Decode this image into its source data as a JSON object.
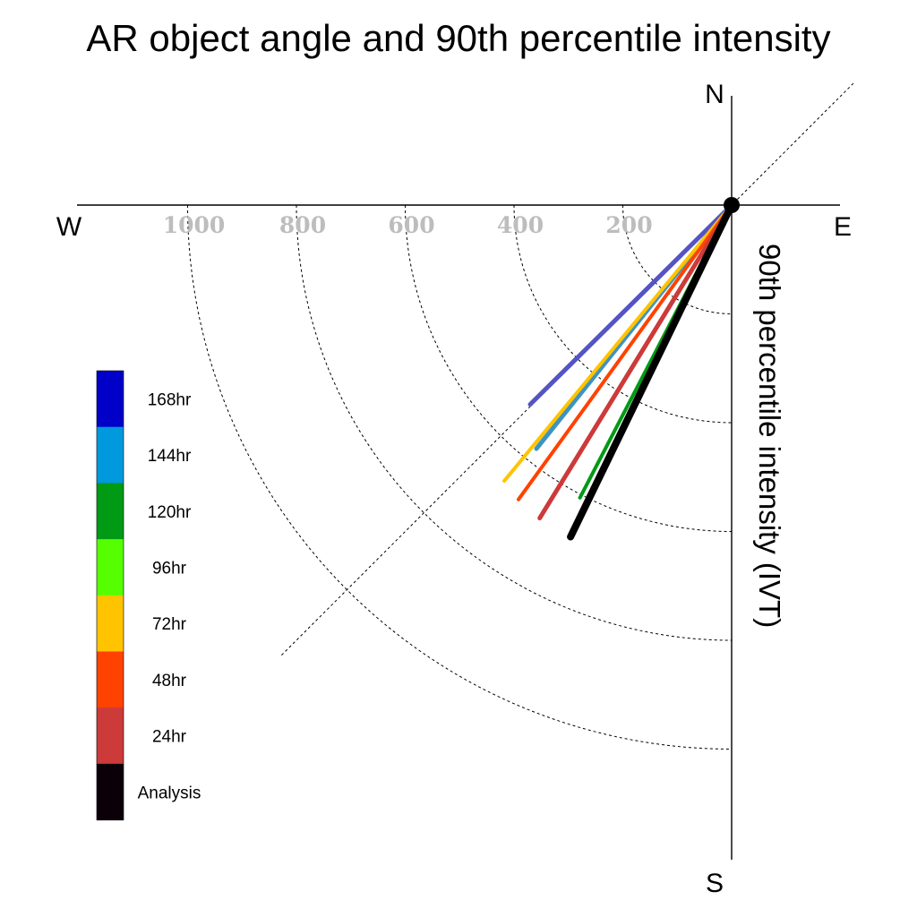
{
  "chart_data": {
    "type": "polar-vector",
    "title": "AR object angle and 90th percentile intensity",
    "ylabel": "90th percentile intensity (IVT)",
    "directions": {
      "north": "N",
      "south": "S",
      "east": "E",
      "west": "W"
    },
    "radial_ticks": [
      200,
      400,
      600,
      800,
      1000
    ],
    "radial_tick_labels": [
      "200",
      "400",
      "600",
      "800",
      "1000"
    ],
    "radial_max": 1200,
    "reference_angle_deg": 225,
    "grid": true,
    "legend_position": "left",
    "series": [
      {
        "name": "168hr",
        "color": "#0000c8",
        "line_color": "#5454c4",
        "angle_deg": 225.3,
        "intensity": 521,
        "width": 5
      },
      {
        "name": "144hr",
        "color": "#0099dd",
        "line_color": "#3f93bf",
        "angle_deg": 218.7,
        "intensity": 574,
        "width": 5
      },
      {
        "name": "120hr",
        "color": "#009a14",
        "line_color": "#009a14",
        "angle_deg": 207.4,
        "intensity": 606,
        "width": 4
      },
      {
        "name": "96hr",
        "color": "#55ff00",
        "line_color": "#55ee00",
        "angle_deg": 205.9,
        "intensity": 600,
        "width": 4
      },
      {
        "name": "72hr",
        "color": "#ffc300",
        "line_color": "#ffc300",
        "angle_deg": 219.5,
        "intensity": 657,
        "width": 4
      },
      {
        "name": "48hr",
        "color": "#ff4200",
        "line_color": "#ff4200",
        "angle_deg": 215.9,
        "intensity": 668,
        "width": 4
      },
      {
        "name": "24hr",
        "color": "#cc3a3a",
        "line_color": "#cc3a3a",
        "angle_deg": 211.5,
        "intensity": 675,
        "width": 5
      },
      {
        "name": "Analysis",
        "color": "#0b0007",
        "line_color": "#000000",
        "angle_deg": 205.9,
        "intensity": 678,
        "width": 8
      }
    ]
  }
}
